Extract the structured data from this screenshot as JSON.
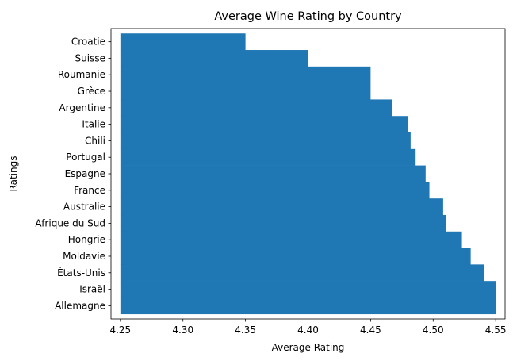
{
  "chart_data": {
    "type": "bar",
    "orientation": "horizontal",
    "title": "Average Wine Rating by Country",
    "xlabel": "Average Rating",
    "ylabel": "Ratings",
    "categories": [
      "Croatie",
      "Suisse",
      "Roumanie",
      "Grèce",
      "Argentine",
      "Italie",
      "Chili",
      "Portugal",
      "Espagne",
      "France",
      "Australie",
      "Afrique du Sud",
      "Hongrie",
      "Moldavie",
      "États-Unis",
      "Israël",
      "Allemagne"
    ],
    "values": [
      4.35,
      4.4,
      4.45,
      4.45,
      4.467,
      4.48,
      4.482,
      4.486,
      4.494,
      4.497,
      4.508,
      4.51,
      4.523,
      4.53,
      4.541,
      4.55,
      4.55
    ],
    "xlim": [
      4.2425,
      4.5575
    ],
    "bar_base": 4.25,
    "xticks": [
      "4.25",
      "4.30",
      "4.35",
      "4.40",
      "4.45",
      "4.50",
      "4.55"
    ],
    "bar_color": "#1f77b4",
    "grid": false,
    "legend": false
  }
}
